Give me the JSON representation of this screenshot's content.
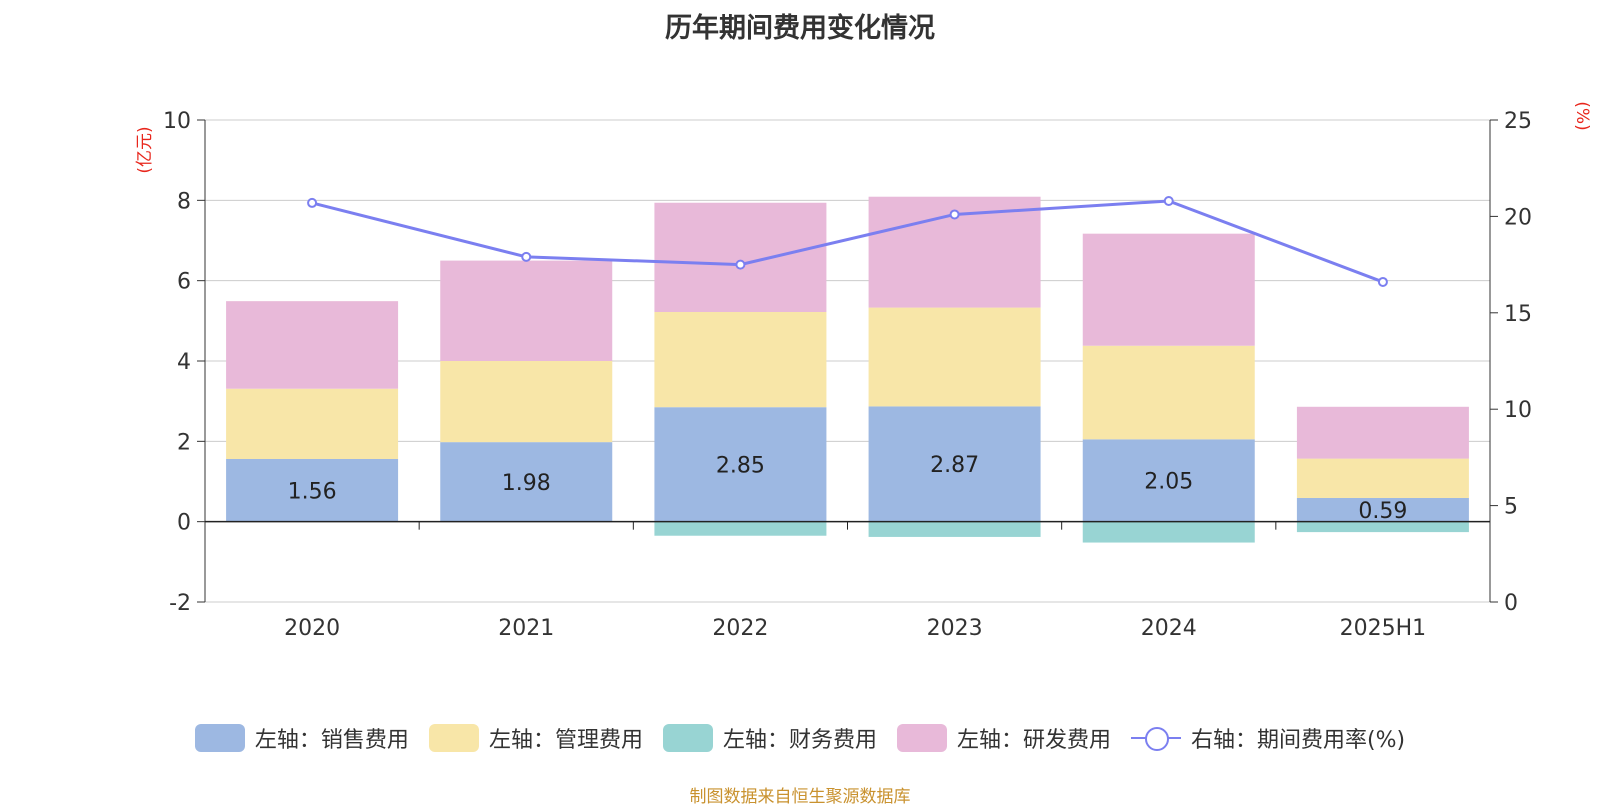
{
  "title": "历年期间费用变化情况",
  "source": "制图数据来自恒生聚源数据库",
  "colors": {
    "sales": "#9db8e2",
    "admin": "#f8e6a8",
    "finance": "#98d4d3",
    "rd": "#e8b9d9",
    "line": "#7b7ff0",
    "axis_unit": "#e8261c"
  },
  "legend": [
    {
      "label": "左轴：销售费用",
      "key": "sales"
    },
    {
      "label": "左轴：管理费用",
      "key": "admin"
    },
    {
      "label": "左轴：财务费用",
      "key": "finance"
    },
    {
      "label": "左轴：研发费用",
      "key": "rd"
    },
    {
      "label": "右轴：期间费用率(%)",
      "key": "line"
    }
  ],
  "chart_data": {
    "type": "bar",
    "stacked": true,
    "title": "历年期间费用变化情况",
    "categories": [
      "2020",
      "2021",
      "2022",
      "2023",
      "2024",
      "2025H1"
    ],
    "left_axis": {
      "unit": "(亿元)",
      "ylim": [
        -2,
        10
      ],
      "ticks": [
        -2,
        0,
        2,
        4,
        6,
        8,
        10
      ]
    },
    "right_axis": {
      "unit": "(%)",
      "ylim": [
        0,
        25
      ],
      "ticks": [
        0,
        5,
        10,
        15,
        20,
        25
      ]
    },
    "series": [
      {
        "name": "左轴：销售费用",
        "key": "sales",
        "axis": "left",
        "values": [
          1.56,
          1.98,
          2.85,
          2.87,
          2.05,
          0.59
        ],
        "labels": [
          "1.56",
          "1.98",
          "2.85",
          "2.87",
          "2.05",
          "0.59"
        ]
      },
      {
        "name": "左轴：管理费用",
        "key": "admin",
        "axis": "left",
        "values": [
          1.75,
          2.02,
          2.37,
          2.46,
          2.33,
          0.98
        ]
      },
      {
        "name": "左轴：财务费用",
        "key": "finance",
        "axis": "left",
        "values": [
          0,
          0,
          -0.35,
          -0.38,
          -0.52,
          -0.26
        ]
      },
      {
        "name": "左轴：研发费用",
        "key": "rd",
        "axis": "left",
        "values": [
          2.18,
          2.5,
          2.72,
          2.76,
          2.79,
          1.29
        ]
      },
      {
        "name": "右轴：期间费用率(%)",
        "key": "line",
        "axis": "right",
        "type": "line",
        "values": [
          20.7,
          17.9,
          17.5,
          20.1,
          20.8,
          16.6
        ]
      }
    ],
    "grid": true,
    "legend_position": "bottom"
  }
}
